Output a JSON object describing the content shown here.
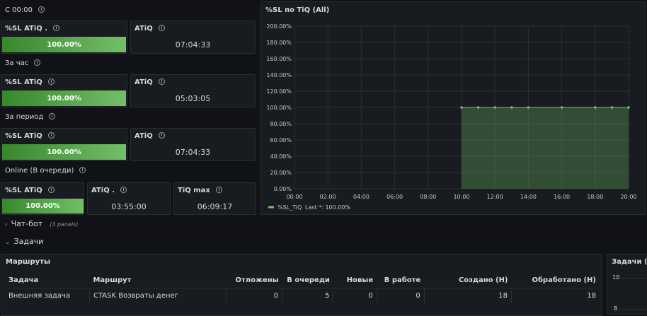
{
  "rows": {
    "since_midnight": "С 00:00",
    "per_hour": "За час",
    "per_period": "За период",
    "online": "Online (В очереди)"
  },
  "stats": {
    "r1": {
      "sl_title": "%SL ATiQ .",
      "sl_value": "100.00%",
      "sl_fraction": 1.0,
      "atiq_title": "ATiQ",
      "atiq_value": "07:04:33"
    },
    "r2": {
      "sl_title": "%SL ATiQ",
      "sl_value": "100.00%",
      "sl_fraction": 1.0,
      "atiq_title": "ATiQ",
      "atiq_value": "05:03:05"
    },
    "r3": {
      "sl_title": "%SL ATiQ",
      "sl_value": "100.00%",
      "sl_fraction": 1.0,
      "atiq_title": "ATiQ",
      "atiq_value": "07:04:33"
    },
    "r4": {
      "sl_title": "%SL ATiQ",
      "sl_value": "100.00%",
      "sl_fraction": 1.0,
      "atiq_title": "ATiQ .",
      "atiq_value": "03:55:00",
      "tiq_title": "TiQ max",
      "tiq_value": "06:09:17"
    }
  },
  "chart_panel": {
    "title": "%SL по TiQ (All)"
  },
  "chart_data": {
    "type": "area",
    "x_ticks": [
      "00:00",
      "02:00",
      "04:00",
      "06:00",
      "08:00",
      "10:00",
      "12:00",
      "14:00",
      "16:00",
      "18:00",
      "20:00"
    ],
    "y_ticks": [
      "0.00%",
      "20.00%",
      "40.00%",
      "60.00%",
      "80.00%",
      "100.00%",
      "120.00%",
      "140.00%",
      "160.00%",
      "180.00%",
      "200.00%"
    ],
    "ylim": [
      0,
      200
    ],
    "xlim_hours": [
      0,
      20
    ],
    "series": [
      {
        "name": "%SL_TiQ",
        "color": "#73bf69",
        "x_hours": [
          10,
          11,
          12,
          13,
          14,
          16,
          18,
          19,
          20
        ],
        "values": [
          100,
          100,
          100,
          100,
          100,
          100,
          100,
          100,
          100
        ]
      }
    ],
    "legend": {
      "label": "%SL_TiQ",
      "last_text": "Last *: 100.00%",
      "placement": "bottom-left"
    }
  },
  "chatbot": {
    "label": "Чат-бот",
    "panels": "(3 panels)"
  },
  "tasks": {
    "label": "Задачи"
  },
  "routes": {
    "title": "Маршруты",
    "columns": [
      "Задача",
      "Маршрут",
      "Отложены",
      "В очереди",
      "Новые",
      "В работе",
      "Создано (Н)",
      "Обработано (Н)"
    ],
    "rows": [
      [
        "Внешняя задача",
        "CTASK Возвраты денег",
        "0",
        "5",
        "0",
        "0",
        "18",
        "18"
      ]
    ]
  },
  "tasks_panel": {
    "title": "Задачи (All)",
    "y_ticks": [
      "10",
      "8"
    ]
  }
}
